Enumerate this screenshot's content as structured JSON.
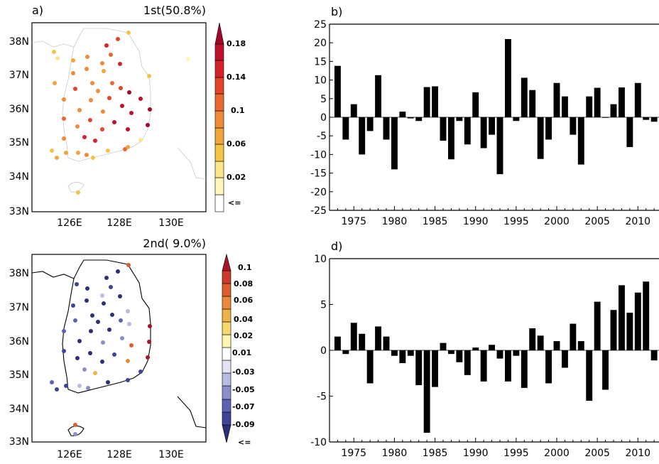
{
  "panels": {
    "a": {
      "label": "a)",
      "mode_title": "1st(50.8%)",
      "lat_ticks": [
        "38N",
        "37N",
        "36N",
        "35N",
        "34N",
        "33N"
      ],
      "lon_ticks": [
        "126E",
        "128E",
        "130E"
      ],
      "colorbar": {
        "labels": [
          "0.18",
          "0.14",
          "0.1",
          "0.06",
          "0.02",
          "<="
        ],
        "colors": [
          "#ffffff",
          "#fff6b8",
          "#fde58a",
          "#f6c445",
          "#f2a43a",
          "#ee8a3a",
          "#e9682f",
          "#e2452a",
          "#d8222a",
          "#c0102a",
          "#a0082a"
        ]
      }
    },
    "c": {
      "mode_title": "2nd( 9.0%)",
      "lat_ticks": [
        "38N",
        "37N",
        "36N",
        "35N",
        "34N",
        "33N"
      ],
      "lon_ticks": [
        "126E",
        "128E",
        "130E"
      ],
      "colorbar": {
        "labels": [
          "0.1",
          "0.08",
          "0.06",
          "0.04",
          "0.02",
          "0.01",
          "-0.03",
          "-0.05",
          "-0.07",
          "-0.09",
          "<="
        ],
        "colors": [
          "#2b2f78",
          "#3e4599",
          "#5c63b3",
          "#8a8fcc",
          "#b8bce3",
          "#e2e4f4",
          "#ffffff",
          "#fff5b0",
          "#f7d86a",
          "#efb24a",
          "#e88a3a",
          "#de5f2d",
          "#cc3a2a",
          "#a8152a"
        ]
      }
    },
    "b": {
      "label": "b)"
    },
    "d": {
      "label": "d)"
    }
  },
  "chart_data": [
    {
      "type": "bar",
      "panel": "b",
      "x": [
        1973,
        1974,
        1975,
        1976,
        1977,
        1978,
        1979,
        1980,
        1981,
        1982,
        1983,
        1984,
        1985,
        1986,
        1987,
        1988,
        1989,
        1990,
        1991,
        1992,
        1993,
        1994,
        1995,
        1996,
        1997,
        1998,
        1999,
        2000,
        2001,
        2002,
        2003,
        2004,
        2005,
        2006,
        2007,
        2008,
        2009,
        2010,
        2011,
        2012
      ],
      "values": [
        13.8,
        -6.0,
        3.5,
        -10.0,
        -3.7,
        11.3,
        -6.0,
        -14.0,
        1.5,
        -0.3,
        -1.0,
        8.1,
        8.3,
        -6.3,
        -11.3,
        -1.0,
        -7.3,
        6.7,
        -8.3,
        -4.7,
        -15.3,
        21.0,
        -1.0,
        10.6,
        7.3,
        -11.2,
        -6.0,
        9.2,
        5.6,
        -4.7,
        -12.7,
        5.6,
        7.9,
        0.0,
        3.5,
        8.0,
        -8.0,
        9.2,
        -0.7,
        -1.2
      ],
      "xticks": [
        1975,
        1980,
        1985,
        1990,
        1995,
        2000,
        2005,
        2010
      ],
      "yticks": [
        25,
        20,
        15,
        10,
        5,
        0,
        -5,
        -10,
        -15,
        -20,
        -25
      ],
      "xlim": [
        1972,
        2012.6
      ],
      "ylim": [
        -25,
        25
      ]
    },
    {
      "type": "bar",
      "panel": "d",
      "x": [
        1973,
        1974,
        1975,
        1976,
        1977,
        1978,
        1979,
        1980,
        1981,
        1982,
        1983,
        1984,
        1985,
        1986,
        1987,
        1988,
        1989,
        1990,
        1991,
        1992,
        1993,
        1994,
        1995,
        1996,
        1997,
        1998,
        1999,
        2000,
        2001,
        2002,
        2003,
        2004,
        2005,
        2006,
        2007,
        2008,
        2009,
        2010,
        2011,
        2012
      ],
      "values": [
        1.5,
        -0.4,
        3.0,
        1.8,
        -3.6,
        2.6,
        1.5,
        -0.6,
        -1.4,
        -0.6,
        -3.8,
        -9.0,
        -4.0,
        0.8,
        -0.4,
        -1.3,
        -2.7,
        0.3,
        -3.4,
        0.6,
        -0.9,
        -3.4,
        -0.6,
        -4.1,
        2.4,
        1.6,
        -3.6,
        1.0,
        -1.9,
        2.9,
        1.0,
        -5.5,
        5.3,
        -4.3,
        4.4,
        7.1,
        4.1,
        6.3,
        7.5,
        -1.1
      ],
      "xticks": [
        1975,
        1980,
        1985,
        1990,
        1995,
        2000,
        2005,
        2010
      ],
      "yticks": [
        10,
        5,
        0,
        -5,
        -10
      ],
      "xlim": [
        1972,
        2012.6
      ],
      "ylim": [
        -10,
        10
      ]
    }
  ]
}
